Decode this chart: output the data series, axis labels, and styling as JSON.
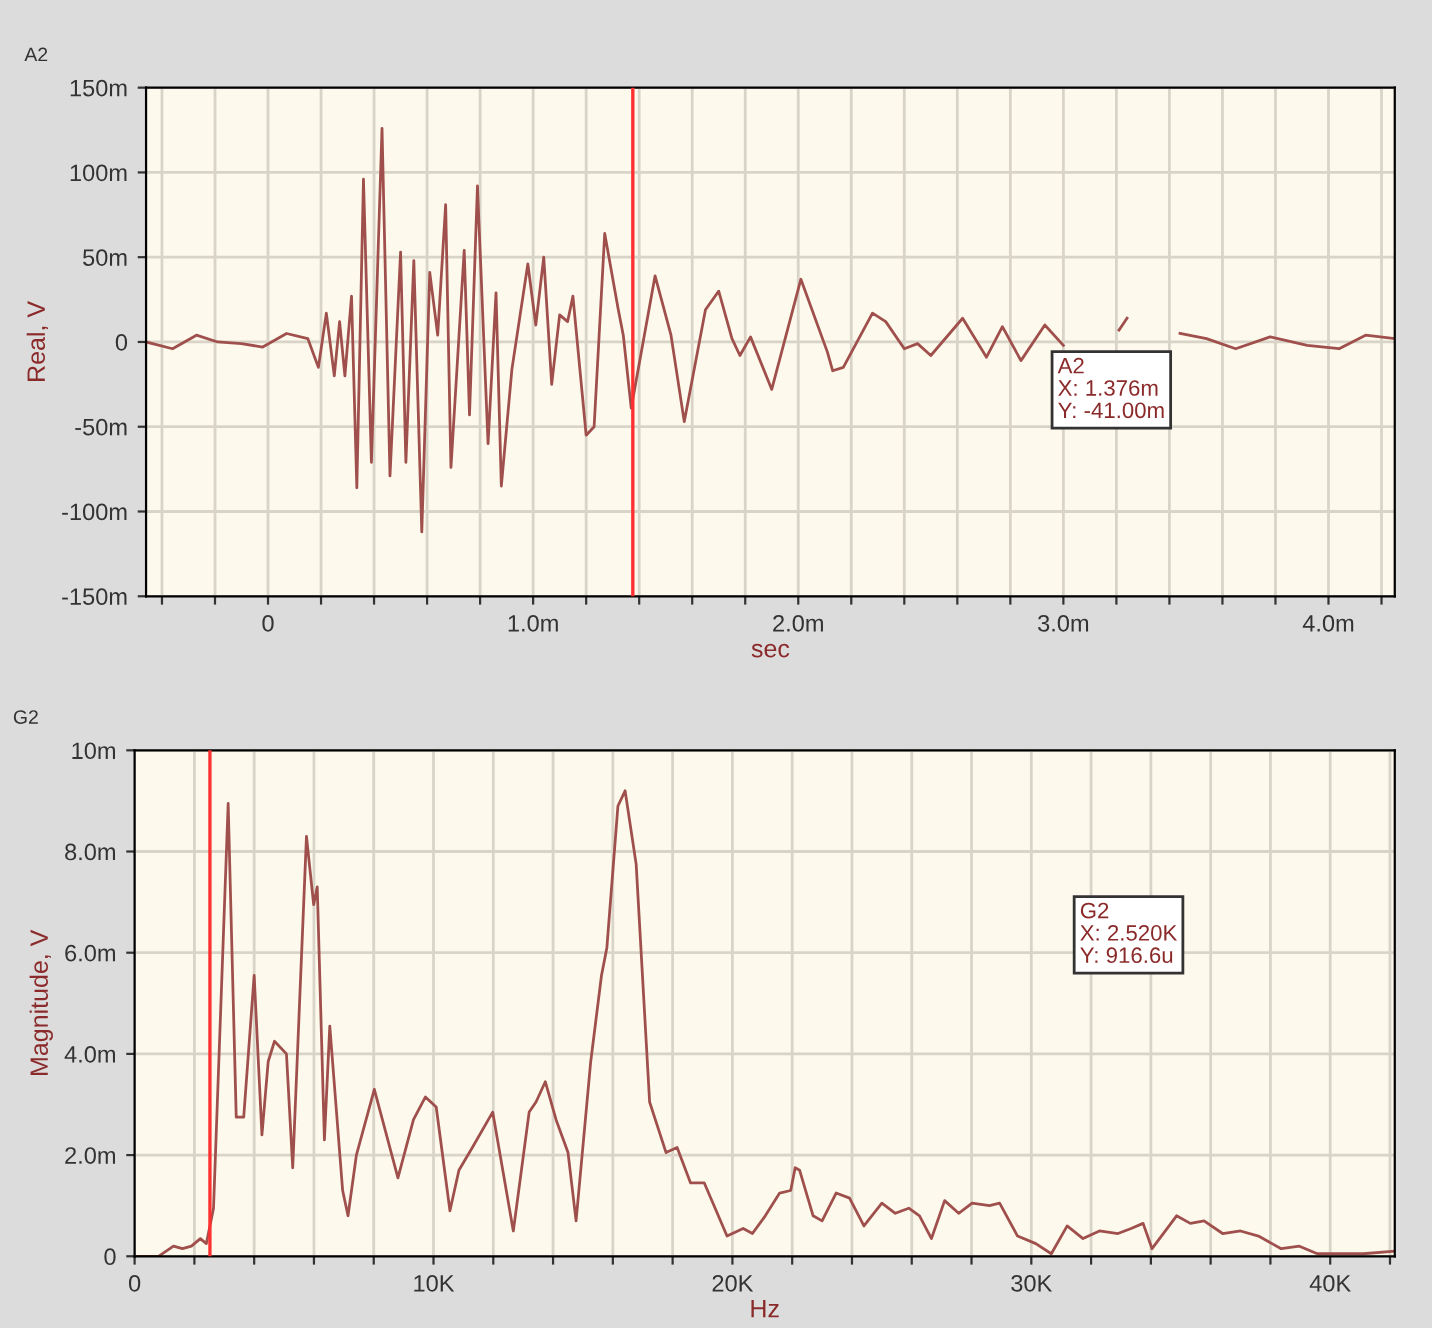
{
  "chart_data": [
    {
      "type": "line",
      "title": "A2",
      "xlabel": "sec",
      "ylabel": "Real, V",
      "grid": true,
      "xlim": [
        -0.46,
        4.25
      ],
      "ylim": [
        -150,
        150
      ],
      "xticks": [
        {
          "value": -0.4,
          "label": null
        },
        {
          "value": -0.2,
          "label": null
        },
        0,
        {
          "value": 0.2,
          "label": null
        },
        {
          "value": 0.4,
          "label": null
        },
        {
          "value": 0.6,
          "label": null
        },
        {
          "value": 0.8,
          "label": null
        },
        {
          "value": 1.0,
          "label": "1.0m"
        },
        {
          "value": 1.2,
          "label": null
        },
        {
          "value": 1.4,
          "label": null
        },
        {
          "value": 1.6,
          "label": null
        },
        {
          "value": 1.8,
          "label": null
        },
        {
          "value": 2.0,
          "label": "2.0m"
        },
        {
          "value": 2.2,
          "label": null
        },
        {
          "value": 2.4,
          "label": null
        },
        {
          "value": 2.6,
          "label": null
        },
        {
          "value": 2.8,
          "label": null
        },
        {
          "value": 3.0,
          "label": "3.0m"
        },
        {
          "value": 3.2,
          "label": null
        },
        {
          "value": 3.4,
          "label": null
        },
        {
          "value": 3.6,
          "label": null
        },
        {
          "value": 3.8,
          "label": null
        },
        {
          "value": 4.0,
          "label": "4.0m"
        },
        {
          "value": 4.2,
          "label": null
        }
      ],
      "yticks": [
        {
          "value": -150,
          "label": "-150m"
        },
        {
          "value": -100,
          "label": "-100m"
        },
        {
          "value": -50,
          "label": "-50m"
        },
        0,
        {
          "value": 50,
          "label": "50m"
        },
        {
          "value": 100,
          "label": "100m"
        },
        {
          "value": 150,
          "label": "150m"
        }
      ],
      "ref_lines": [
        {
          "axis": "x",
          "value": 1.376,
          "color": "#ff3030"
        }
      ],
      "annotations": [
        "A2\nX: 1.376m\nY: -41.00m"
      ],
      "series": [
        {
          "color": "#a0504c",
          "x": [
            -0.46,
            -0.36,
            -0.27,
            -0.19,
            -0.1,
            -0.02,
            0.07,
            0.15,
            0.19,
            0.22,
            0.25,
            0.27,
            0.29,
            0.315,
            0.335,
            0.36,
            0.39,
            0.43,
            0.46,
            0.5,
            0.52,
            0.55,
            0.58,
            0.61,
            0.64,
            0.67,
            0.69,
            0.74,
            0.76,
            0.79,
            0.83,
            0.86,
            0.88,
            0.92,
            0.98,
            1.01,
            1.04,
            1.07,
            1.1,
            1.13,
            1.15,
            1.2,
            1.23,
            1.27,
            1.32,
            1.34,
            1.37,
            1.46,
            1.52,
            1.57,
            1.65,
            1.7,
            1.75,
            1.78,
            1.82,
            1.9,
            2.01,
            2.11,
            2.13,
            2.17,
            2.28,
            2.33,
            2.4,
            2.45,
            2.5,
            2.62,
            2.71,
            2.77,
            2.84,
            2.93,
            3.0,
            3.06,
            3.15,
            3.21,
            3.24,
            3.28,
            3.33,
            3.36,
            3.44,
            3.54,
            3.65,
            3.78,
            3.92,
            4.04,
            4.14,
            4.25
          ],
          "values": [
            0,
            -4,
            4,
            0,
            -1,
            -3,
            5,
            2,
            -15,
            17,
            -20,
            12,
            -20,
            27,
            -86,
            96,
            -71,
            126,
            -79,
            53,
            -71,
            48,
            -112,
            41,
            4,
            81,
            -74,
            54,
            -43,
            92,
            -60,
            29,
            -85,
            -16,
            46,
            10,
            50,
            -25,
            16,
            12,
            27,
            -55,
            -50,
            64,
            20,
            4,
            -39,
            39,
            4,
            -47,
            19,
            30,
            2,
            -8,
            3,
            -28,
            37,
            -6,
            -17,
            -15,
            17,
            12,
            -4,
            -1,
            -8,
            14,
            -9,
            9,
            -11,
            10,
            -2,
            null,
            null,
            7,
            14,
            null,
            null,
            null,
            5,
            2,
            -4,
            3,
            -2,
            -4,
            4,
            2
          ]
        }
      ]
    },
    {
      "type": "line",
      "title": "G2",
      "xlabel": "Hz",
      "ylabel": "Magnitude, V",
      "grid": true,
      "xlim": [
        0,
        42.16
      ],
      "ylim": [
        0,
        10
      ],
      "xticks": [
        0,
        {
          "value": 2,
          "label": null
        },
        {
          "value": 4,
          "label": null
        },
        {
          "value": 6,
          "label": null
        },
        {
          "value": 8,
          "label": null
        },
        {
          "value": 10,
          "label": "10K"
        },
        {
          "value": 12,
          "label": null
        },
        {
          "value": 14,
          "label": null
        },
        {
          "value": 16,
          "label": null
        },
        {
          "value": 18,
          "label": null
        },
        {
          "value": 20,
          "label": "20K"
        },
        {
          "value": 22,
          "label": null
        },
        {
          "value": 24,
          "label": null
        },
        {
          "value": 26,
          "label": null
        },
        {
          "value": 28,
          "label": null
        },
        {
          "value": 30,
          "label": "30K"
        },
        {
          "value": 32,
          "label": null
        },
        {
          "value": 34,
          "label": null
        },
        {
          "value": 36,
          "label": null
        },
        {
          "value": 38,
          "label": null
        },
        {
          "value": 40,
          "label": "40K"
        },
        {
          "value": 42,
          "label": null
        }
      ],
      "yticks": [
        0,
        {
          "value": 2,
          "label": "2.0m"
        },
        {
          "value": 4,
          "label": "4.0m"
        },
        {
          "value": 6,
          "label": "6.0m"
        },
        {
          "value": 8,
          "label": "8.0m"
        },
        {
          "value": 10,
          "label": "10m"
        }
      ],
      "ref_lines": [
        {
          "axis": "x",
          "value": 2.52,
          "color": "#ff3030"
        }
      ],
      "annotations": [
        "G2\nX: 2.520K\nY: 916.6u"
      ],
      "series": [
        {
          "color": "#a0504c",
          "x": [
            0,
            0.8,
            1.3,
            1.6,
            1.9,
            2.2,
            2.4,
            2.64,
            3.13,
            3.4,
            3.65,
            4.0,
            4.26,
            4.47,
            4.68,
            5.08,
            5.29,
            5.75,
            5.99,
            6.11,
            6.35,
            6.53,
            6.96,
            7.14,
            7.42,
            8.02,
            8.81,
            9.33,
            9.73,
            10.09,
            10.55,
            10.85,
            11.3,
            11.98,
            12.67,
            13.2,
            13.43,
            13.74,
            14.1,
            14.5,
            14.77,
            15.26,
            15.62,
            15.8,
            16.17,
            16.41,
            16.78,
            17.23,
            17.78,
            18.15,
            18.6,
            19.06,
            19.82,
            20.36,
            20.67,
            21.1,
            21.58,
            21.95,
            22.1,
            22.25,
            22.7,
            23.0,
            23.47,
            23.92,
            24.4,
            25.0,
            25.45,
            25.9,
            26.26,
            26.66,
            27.1,
            27.57,
            28.02,
            28.6,
            28.94,
            29.54,
            30.15,
            30.67,
            31.2,
            31.73,
            32.28,
            32.9,
            33.34,
            33.74,
            34.04,
            34.86,
            35.32,
            35.78,
            36.4,
            37.0,
            37.6,
            38.36,
            38.97,
            39.57,
            41.1,
            42.16
          ],
          "values": [
            0,
            0,
            0.2,
            0.15,
            0.2,
            0.35,
            0.25,
            0.95,
            8.95,
            2.75,
            2.75,
            5.55,
            2.4,
            3.85,
            4.25,
            4.0,
            1.75,
            8.3,
            6.95,
            7.3,
            2.3,
            4.55,
            1.3,
            0.8,
            2.0,
            3.3,
            1.55,
            2.7,
            3.15,
            2.95,
            0.9,
            1.7,
            2.15,
            2.85,
            0.5,
            2.85,
            3.05,
            3.45,
            2.7,
            2.05,
            0.7,
            3.85,
            5.55,
            6.1,
            8.9,
            9.2,
            7.75,
            3.05,
            2.05,
            2.15,
            1.45,
            1.45,
            0.4,
            0.55,
            0.45,
            0.8,
            1.25,
            1.3,
            1.75,
            1.7,
            0.8,
            0.7,
            1.25,
            1.15,
            0.6,
            1.05,
            0.85,
            0.95,
            0.8,
            0.35,
            1.1,
            0.85,
            1.05,
            1.0,
            1.05,
            0.4,
            0.25,
            0.05,
            0.6,
            0.35,
            0.5,
            0.45,
            0.55,
            0.65,
            0.15,
            0.8,
            0.65,
            0.7,
            0.45,
            0.5,
            0.4,
            0.15,
            0.2,
            0.05,
            0.05,
            0.1
          ]
        }
      ]
    }
  ]
}
